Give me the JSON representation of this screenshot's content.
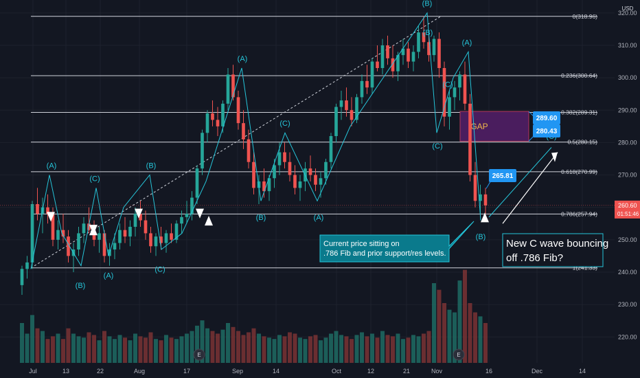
{
  "chart_data": {
    "type": "candlestick",
    "currency_label": "USD",
    "ylim": [
      212,
      324
    ],
    "y_ticks": [
      "320.00",
      "310.00",
      "300.00",
      "290.00",
      "280.00",
      "270.00",
      "260.00",
      "250.00",
      "240.00",
      "230.00",
      "220.00"
    ],
    "x_ticks": [
      "Jul",
      "13",
      "22",
      "Aug",
      "17",
      "Sep",
      "14",
      "Oct",
      "12",
      "21",
      "Nov",
      "16",
      "Dec",
      "14"
    ],
    "last_price": "260.60",
    "countdown": "01:51:46",
    "fib_levels": [
      {
        "label": "0(318.96)",
        "value": 318.96
      },
      {
        "label": "0.236(300.64)",
        "value": 300.64
      },
      {
        "label": "0.382(289.31)",
        "value": 289.31
      },
      {
        "label": "0.5(280.15)",
        "value": 280.15
      },
      {
        "label": "0.618(270.99)",
        "value": 270.99
      },
      {
        "label": "0.786(257.94)",
        "value": 257.94
      },
      {
        "label": "1(241.33)",
        "value": 241.33
      }
    ],
    "wave_labels": [
      "(A)",
      "(B)",
      "(C)",
      "(A)",
      "(B)",
      "(C)",
      "(A)",
      "(B)",
      "(C)",
      "(A)",
      "(B)",
      "(C)",
      "(B)",
      "(A)",
      "(C)",
      "(B)",
      "(C)"
    ],
    "price_callouts": [
      "289.60",
      "280.43",
      "265.81"
    ],
    "gap_label": "GAP",
    "earnings_marker": "E",
    "annotations": [
      {
        "lines": [
          "Current price sitting on",
          ".786 Fib and prior support/res levels."
        ]
      },
      {
        "lines": [
          "New C wave bouncing",
          "off .786 Fib?"
        ]
      }
    ],
    "candles": [
      [
        236,
        242,
        233,
        241
      ],
      [
        241,
        245,
        238,
        243
      ],
      [
        243,
        262,
        241,
        261
      ],
      [
        261,
        266,
        256,
        258
      ],
      [
        258,
        263,
        252,
        260
      ],
      [
        260,
        264,
        255,
        258
      ],
      [
        258,
        260,
        248,
        250
      ],
      [
        250,
        256,
        247,
        253
      ],
      [
        253,
        258,
        249,
        251
      ],
      [
        251,
        253,
        243,
        245
      ],
      [
        245,
        249,
        240,
        247
      ],
      [
        247,
        254,
        245,
        252
      ],
      [
        252,
        257,
        249,
        255
      ],
      [
        255,
        260,
        252,
        253
      ],
      [
        253,
        256,
        248,
        250
      ],
      [
        250,
        254,
        246,
        252
      ],
      [
        252,
        253,
        243,
        245
      ],
      [
        245,
        249,
        242,
        247
      ],
      [
        247,
        252,
        244,
        249
      ],
      [
        249,
        255,
        247,
        253
      ],
      [
        253,
        257,
        249,
        251
      ],
      [
        251,
        256,
        248,
        254
      ],
      [
        254,
        260,
        251,
        258
      ],
      [
        258,
        262,
        254,
        256
      ],
      [
        256,
        259,
        250,
        252
      ],
      [
        252,
        254,
        246,
        248
      ],
      [
        248,
        252,
        245,
        251
      ],
      [
        251,
        254,
        247,
        249
      ],
      [
        249,
        253,
        246,
        252
      ],
      [
        252,
        255,
        249,
        250
      ],
      [
        250,
        256,
        249,
        255
      ],
      [
        255,
        259,
        252,
        257
      ],
      [
        257,
        262,
        255,
        258
      ],
      [
        258,
        265,
        256,
        263
      ],
      [
        263,
        273,
        261,
        272
      ],
      [
        272,
        284,
        270,
        283
      ],
      [
        283,
        290,
        280,
        289
      ],
      [
        289,
        293,
        285,
        287
      ],
      [
        287,
        291,
        282,
        285
      ],
      [
        285,
        293,
        283,
        292
      ],
      [
        292,
        303,
        290,
        301
      ],
      [
        301,
        304,
        293,
        294
      ],
      [
        294,
        296,
        284,
        286
      ],
      [
        286,
        290,
        278,
        281
      ],
      [
        281,
        284,
        272,
        274
      ],
      [
        274,
        277,
        264,
        266
      ],
      [
        266,
        270,
        261,
        268
      ],
      [
        268,
        272,
        263,
        265
      ],
      [
        265,
        270,
        262,
        269
      ],
      [
        269,
        275,
        266,
        273
      ],
      [
        273,
        280,
        270,
        277
      ],
      [
        277,
        280,
        272,
        274
      ],
      [
        274,
        277,
        268,
        270
      ],
      [
        270,
        273,
        264,
        266
      ],
      [
        266,
        270,
        262,
        268
      ],
      [
        268,
        274,
        265,
        272
      ],
      [
        272,
        276,
        268,
        270
      ],
      [
        270,
        272,
        265,
        267
      ],
      [
        267,
        271,
        263,
        269
      ],
      [
        269,
        275,
        267,
        274
      ],
      [
        274,
        283,
        272,
        282
      ],
      [
        282,
        292,
        280,
        291
      ],
      [
        291,
        296,
        287,
        293
      ],
      [
        293,
        297,
        288,
        290
      ],
      [
        290,
        294,
        285,
        287
      ],
      [
        287,
        295,
        286,
        294
      ],
      [
        294,
        301,
        292,
        299
      ],
      [
        299,
        304,
        295,
        297
      ],
      [
        297,
        306,
        295,
        305
      ],
      [
        305,
        310,
        302,
        303
      ],
      [
        303,
        312,
        301,
        310
      ],
      [
        310,
        313,
        304,
        306
      ],
      [
        306,
        310,
        300,
        302
      ],
      [
        302,
        308,
        299,
        307
      ],
      [
        307,
        312,
        304,
        309
      ],
      [
        309,
        311,
        303,
        305
      ],
      [
        305,
        310,
        302,
        308
      ],
      [
        308,
        316,
        306,
        314
      ],
      [
        314,
        319,
        309,
        311
      ],
      [
        311,
        314,
        305,
        307
      ],
      [
        307,
        313,
        305,
        312
      ],
      [
        312,
        314,
        300,
        303
      ],
      [
        303,
        305,
        285,
        288
      ],
      [
        288,
        296,
        284,
        294
      ],
      [
        294,
        299,
        290,
        297
      ],
      [
        297,
        302,
        293,
        301
      ],
      [
        301,
        305,
        290,
        292
      ],
      [
        292,
        295,
        268,
        270
      ],
      [
        270,
        274,
        260,
        262
      ],
      [
        262,
        267,
        258,
        264
      ],
      [
        264,
        266,
        258,
        260.6
      ]
    ],
    "volumes": [
      30,
      22,
      36,
      26,
      24,
      18,
      20,
      22,
      18,
      26,
      22,
      20,
      19,
      23,
      21,
      17,
      24,
      20,
      18,
      21,
      19,
      17,
      22,
      20,
      19,
      23,
      18,
      17,
      21,
      19,
      18,
      20,
      22,
      24,
      28,
      32,
      26,
      24,
      22,
      25,
      30,
      27,
      24,
      21,
      23,
      26,
      22,
      20,
      19,
      18,
      21,
      20,
      23,
      22,
      19,
      18,
      20,
      21,
      17,
      19,
      22,
      24,
      21,
      20,
      18,
      21,
      23,
      20,
      22,
      19,
      24,
      21,
      20,
      22,
      18,
      19,
      21,
      20,
      22,
      24,
      60,
      55,
      45,
      40,
      38,
      62,
      70,
      45,
      38,
      35,
      30
    ]
  }
}
